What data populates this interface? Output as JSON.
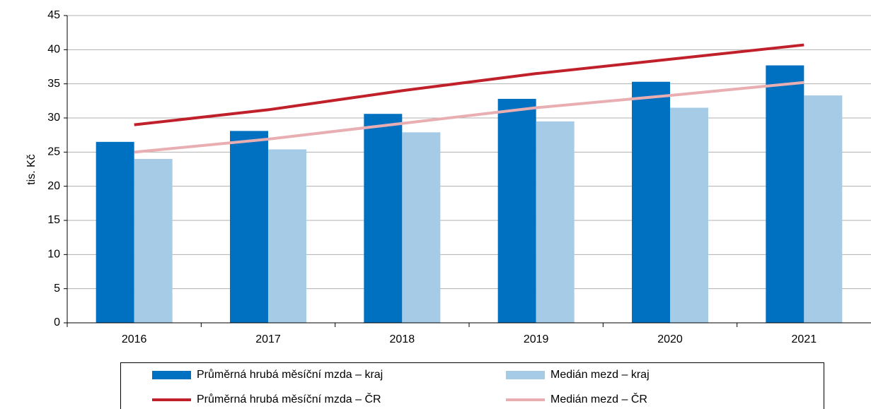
{
  "chart_data": {
    "type": "bar_line",
    "y_axis_label": "tis. Kč",
    "categories": [
      "2016",
      "2017",
      "2018",
      "2019",
      "2020",
      "2021"
    ],
    "series": [
      {
        "name": "Průměrná hrubá měsíční mzda – kraj",
        "kind": "bar",
        "color": "#0070c0",
        "values": [
          26.5,
          28.1,
          30.6,
          32.8,
          35.3,
          37.7
        ]
      },
      {
        "name": "Medián mezd – kraj",
        "kind": "bar",
        "color": "#a6cbe6",
        "values": [
          24.0,
          25.4,
          27.9,
          29.5,
          31.5,
          33.3
        ]
      },
      {
        "name": "Průměrná hrubá měsíční mzda – ČR",
        "kind": "line",
        "color": "#c0202a",
        "values": [
          29.0,
          31.2,
          34.0,
          36.5,
          38.6,
          40.7
        ]
      },
      {
        "name": "Medián mezd – ČR",
        "kind": "line",
        "color": "#e8aeb2",
        "values": [
          25.0,
          26.9,
          29.2,
          31.5,
          33.3,
          35.2
        ]
      }
    ],
    "ylim": [
      0,
      45
    ],
    "yticks": [
      0,
      5,
      10,
      15,
      20,
      25,
      30,
      35,
      40,
      45
    ],
    "grid": true,
    "legend": "bottom"
  }
}
